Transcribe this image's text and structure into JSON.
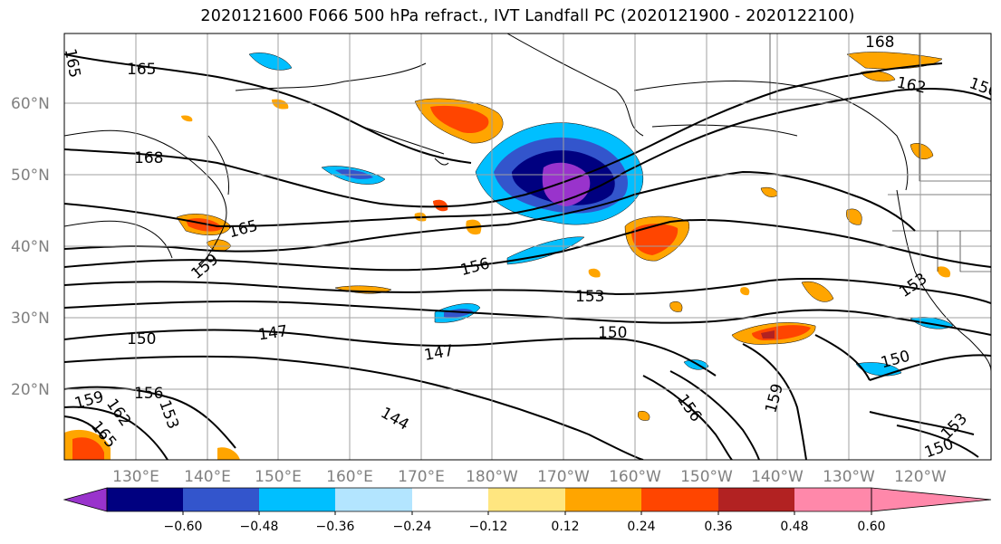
{
  "title": "2020121600 F066 500 hPa refract., IVT Landfall PC (2020121900 - 2020122100)",
  "map": {
    "lat_ticks": [
      "60°N",
      "50°N",
      "40°N",
      "30°N",
      "20°N"
    ],
    "lon_ticks": [
      "130°E",
      "140°E",
      "150°E",
      "160°E",
      "170°E",
      "180°W",
      "170°W",
      "160°W",
      "150°W",
      "140°W",
      "130°W",
      "120°W"
    ],
    "contour_labels": [
      "165",
      "165",
      "168",
      "168",
      "162",
      "165",
      "159",
      "156",
      "153",
      "153",
      "150",
      "147",
      "147",
      "150",
      "150",
      "156",
      "159",
      "162",
      "153",
      "165",
      "144",
      "156",
      "159",
      "150",
      "153",
      "150"
    ]
  },
  "colorbar": {
    "labels": [
      "−0.60",
      "−0.48",
      "−0.36",
      "−0.24",
      "−0.12",
      "0.12",
      "0.24",
      "0.36",
      "0.48",
      "0.60"
    ],
    "colors": [
      "#9933cc",
      "#000080",
      "#3355cc",
      "#00bfff",
      "#b3e5ff",
      "#ffffff",
      "#ffe680",
      "#ffa500",
      "#ff4500",
      "#b22222",
      "#ff88aa"
    ]
  }
}
